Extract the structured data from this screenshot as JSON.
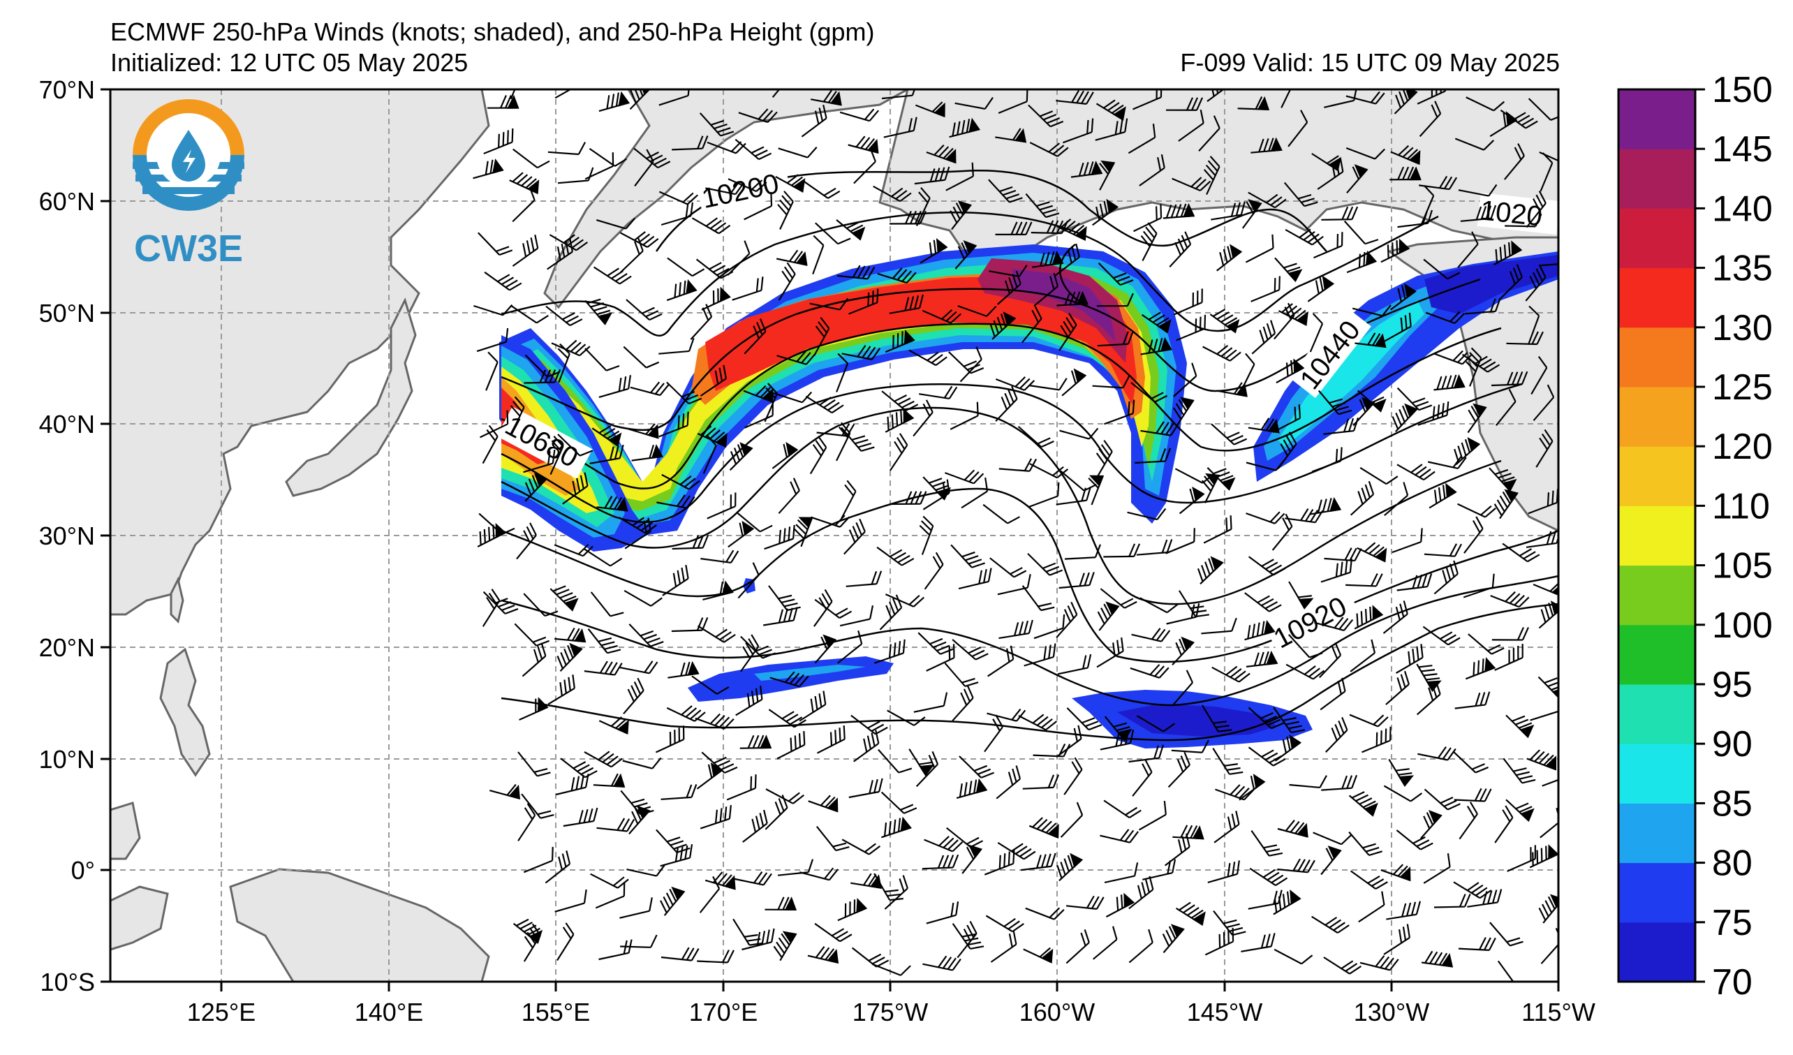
{
  "header": {
    "title": "ECMWF 250-hPa Winds (knots; shaded), and 250-hPa Height (gpm)",
    "init": "Initialized: 12 UTC 05 May 2025",
    "valid": "F-099  Valid: 15 UTC 09 May 2025"
  },
  "logo": {
    "text": "CW3E",
    "colors": {
      "orange": "#f39a1e",
      "blue": "#2f8fc4"
    }
  },
  "map": {
    "lat_labels": [
      "70°N",
      "60°N",
      "50°N",
      "40°N",
      "30°N",
      "20°N",
      "10°N",
      "0°",
      "10°S"
    ],
    "lon_labels": [
      "125°E",
      "140°E",
      "155°E",
      "170°E",
      "175°W",
      "160°W",
      "145°W",
      "130°W",
      "115°W"
    ],
    "land_color": "#e6e6e6",
    "coast_color": "#666666",
    "grid_color": "#999999"
  },
  "contour_labels": [
    {
      "text": "10200"
    },
    {
      "text": "1020"
    },
    {
      "text": "10440"
    },
    {
      "text": "10680"
    },
    {
      "text": "10920"
    }
  ],
  "colorbar": {
    "levels": [
      70,
      75,
      80,
      85,
      90,
      95,
      100,
      105,
      110,
      120,
      125,
      130,
      135,
      140,
      145,
      150
    ],
    "colors": [
      "#1c1ccc",
      "#1f3cf0",
      "#1fa4f0",
      "#1ae6ea",
      "#1fe0b0",
      "#1fbf2a",
      "#78cc1e",
      "#f0f01e",
      "#f5c41e",
      "#f5a21e",
      "#f57a1e",
      "#f52a1e",
      "#cc1e3c",
      "#a81e5a",
      "#7a1e8c"
    ],
    "tick_labels": [
      "70",
      "75",
      "80",
      "85",
      "90",
      "95",
      "100",
      "105",
      "110",
      "120",
      "125",
      "130",
      "135",
      "140",
      "145",
      "150"
    ]
  }
}
